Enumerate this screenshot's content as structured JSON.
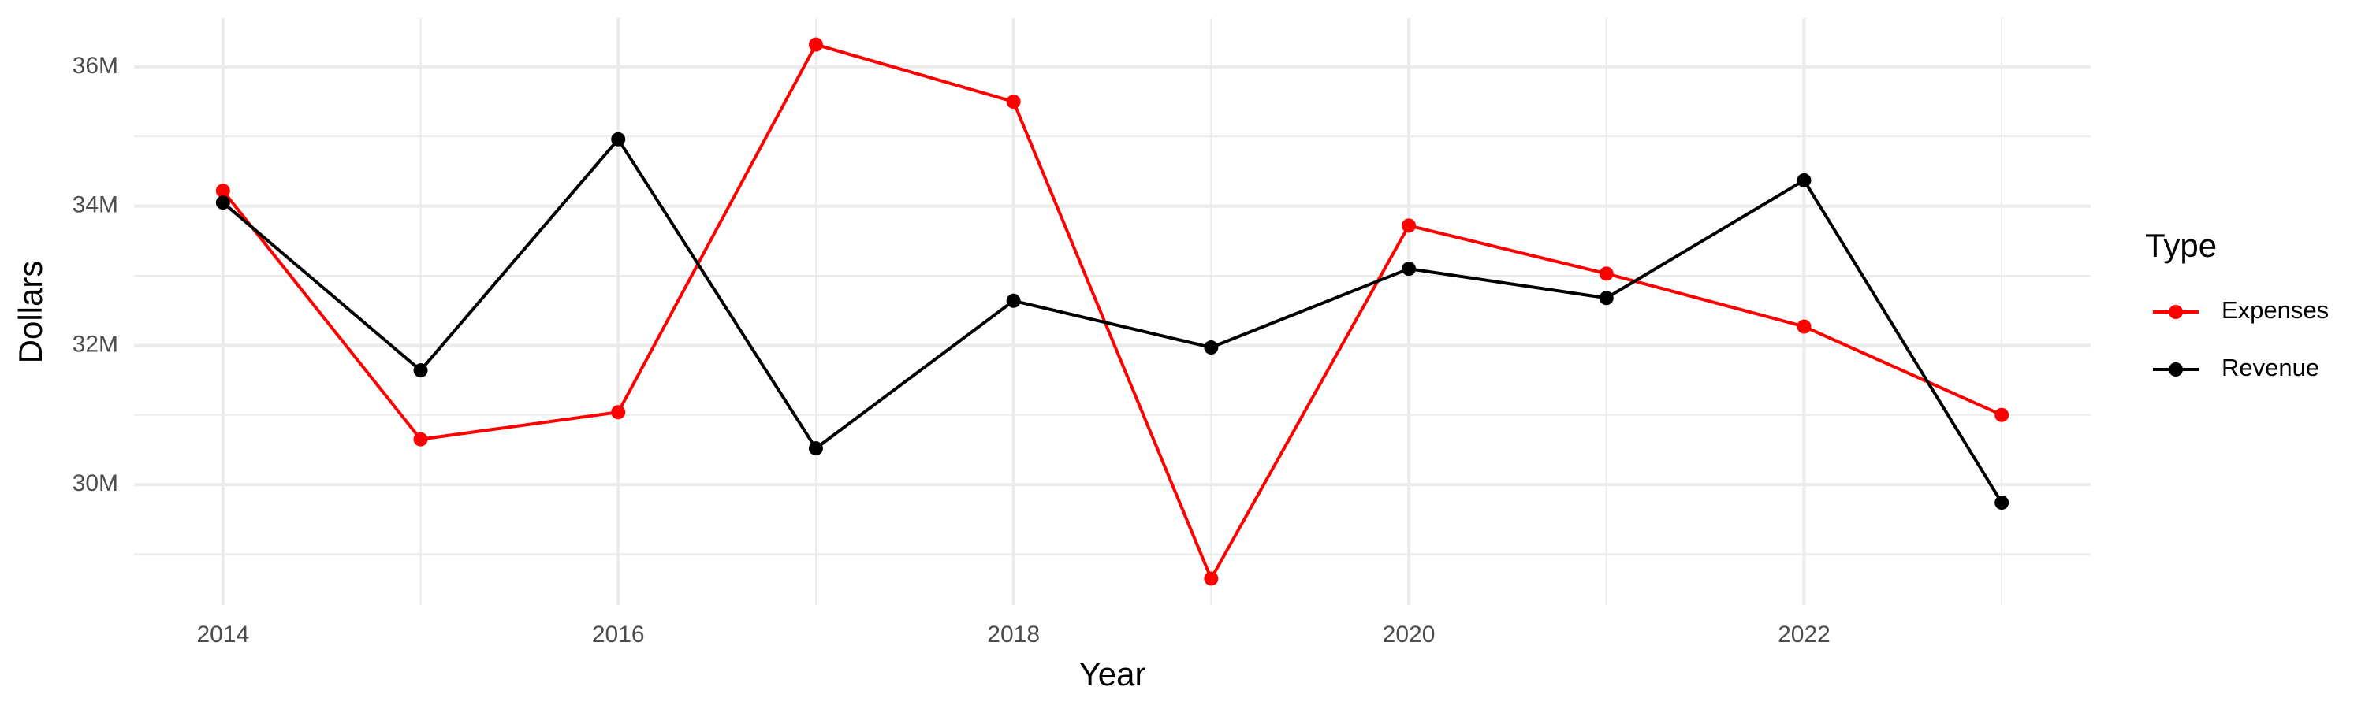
{
  "chart_data": {
    "type": "line",
    "x_label": "Year",
    "y_label": "Dollars",
    "x": [
      2014,
      2015,
      2016,
      2017,
      2018,
      2019,
      2020,
      2021,
      2022,
      2023
    ],
    "series": [
      {
        "name": "Expenses",
        "color": "#ff0000",
        "values": [
          34220000,
          30650000,
          31040000,
          36320000,
          35500000,
          28650000,
          33720000,
          33030000,
          32270000,
          31000000
        ]
      },
      {
        "name": "Revenue",
        "color": "#000000",
        "values": [
          34050000,
          31640000,
          34960000,
          30520000,
          32640000,
          31970000,
          33100000,
          32680000,
          34370000,
          29740000
        ]
      }
    ],
    "xlim": [
      2013.55,
      2023.45
    ],
    "xticks": [
      2014,
      2016,
      2018,
      2020,
      2022
    ],
    "ylim": [
      28270000,
      36700000
    ],
    "yticks": [
      {
        "value": 30000000,
        "label": "30M"
      },
      {
        "value": 32000000,
        "label": "32M"
      },
      {
        "value": 34000000,
        "label": "34M"
      },
      {
        "value": 36000000,
        "label": "36M"
      }
    ],
    "grid": true,
    "legend_title": "Type",
    "legend_position": "right"
  }
}
